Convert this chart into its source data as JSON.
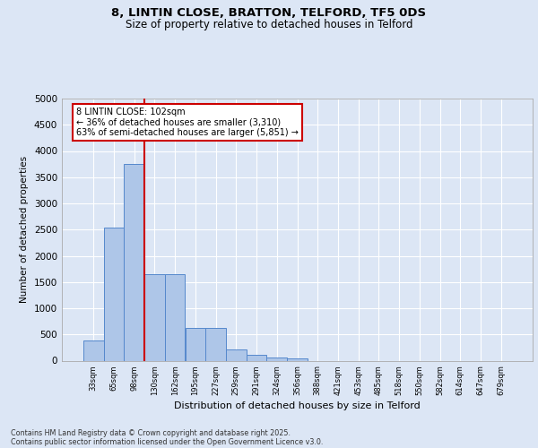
{
  "title1": "8, LINTIN CLOSE, BRATTON, TELFORD, TF5 0DS",
  "title2": "Size of property relative to detached houses in Telford",
  "xlabel": "Distribution of detached houses by size in Telford",
  "ylabel": "Number of detached properties",
  "categories": [
    "33sqm",
    "65sqm",
    "98sqm",
    "130sqm",
    "162sqm",
    "195sqm",
    "227sqm",
    "259sqm",
    "291sqm",
    "324sqm",
    "356sqm",
    "388sqm",
    "421sqm",
    "453sqm",
    "485sqm",
    "518sqm",
    "550sqm",
    "582sqm",
    "614sqm",
    "647sqm",
    "679sqm"
  ],
  "values": [
    380,
    2530,
    3760,
    1650,
    1650,
    620,
    620,
    220,
    110,
    60,
    45,
    0,
    0,
    0,
    0,
    0,
    0,
    0,
    0,
    0,
    0
  ],
  "bar_color": "#aec6e8",
  "bar_edge_color": "#5588cc",
  "property_line_color": "#cc0000",
  "annotation_text": "8 LINTIN CLOSE: 102sqm\n← 36% of detached houses are smaller (3,310)\n63% of semi-detached houses are larger (5,851) →",
  "annotation_box_color": "#cc0000",
  "ylim": [
    0,
    5000
  ],
  "yticks": [
    0,
    500,
    1000,
    1500,
    2000,
    2500,
    3000,
    3500,
    4000,
    4500,
    5000
  ],
  "background_color": "#dce6f5",
  "plot_background_color": "#dce6f5",
  "grid_color": "#ffffff",
  "footer1": "Contains HM Land Registry data © Crown copyright and database right 2025.",
  "footer2": "Contains public sector information licensed under the Open Government Licence v3.0."
}
